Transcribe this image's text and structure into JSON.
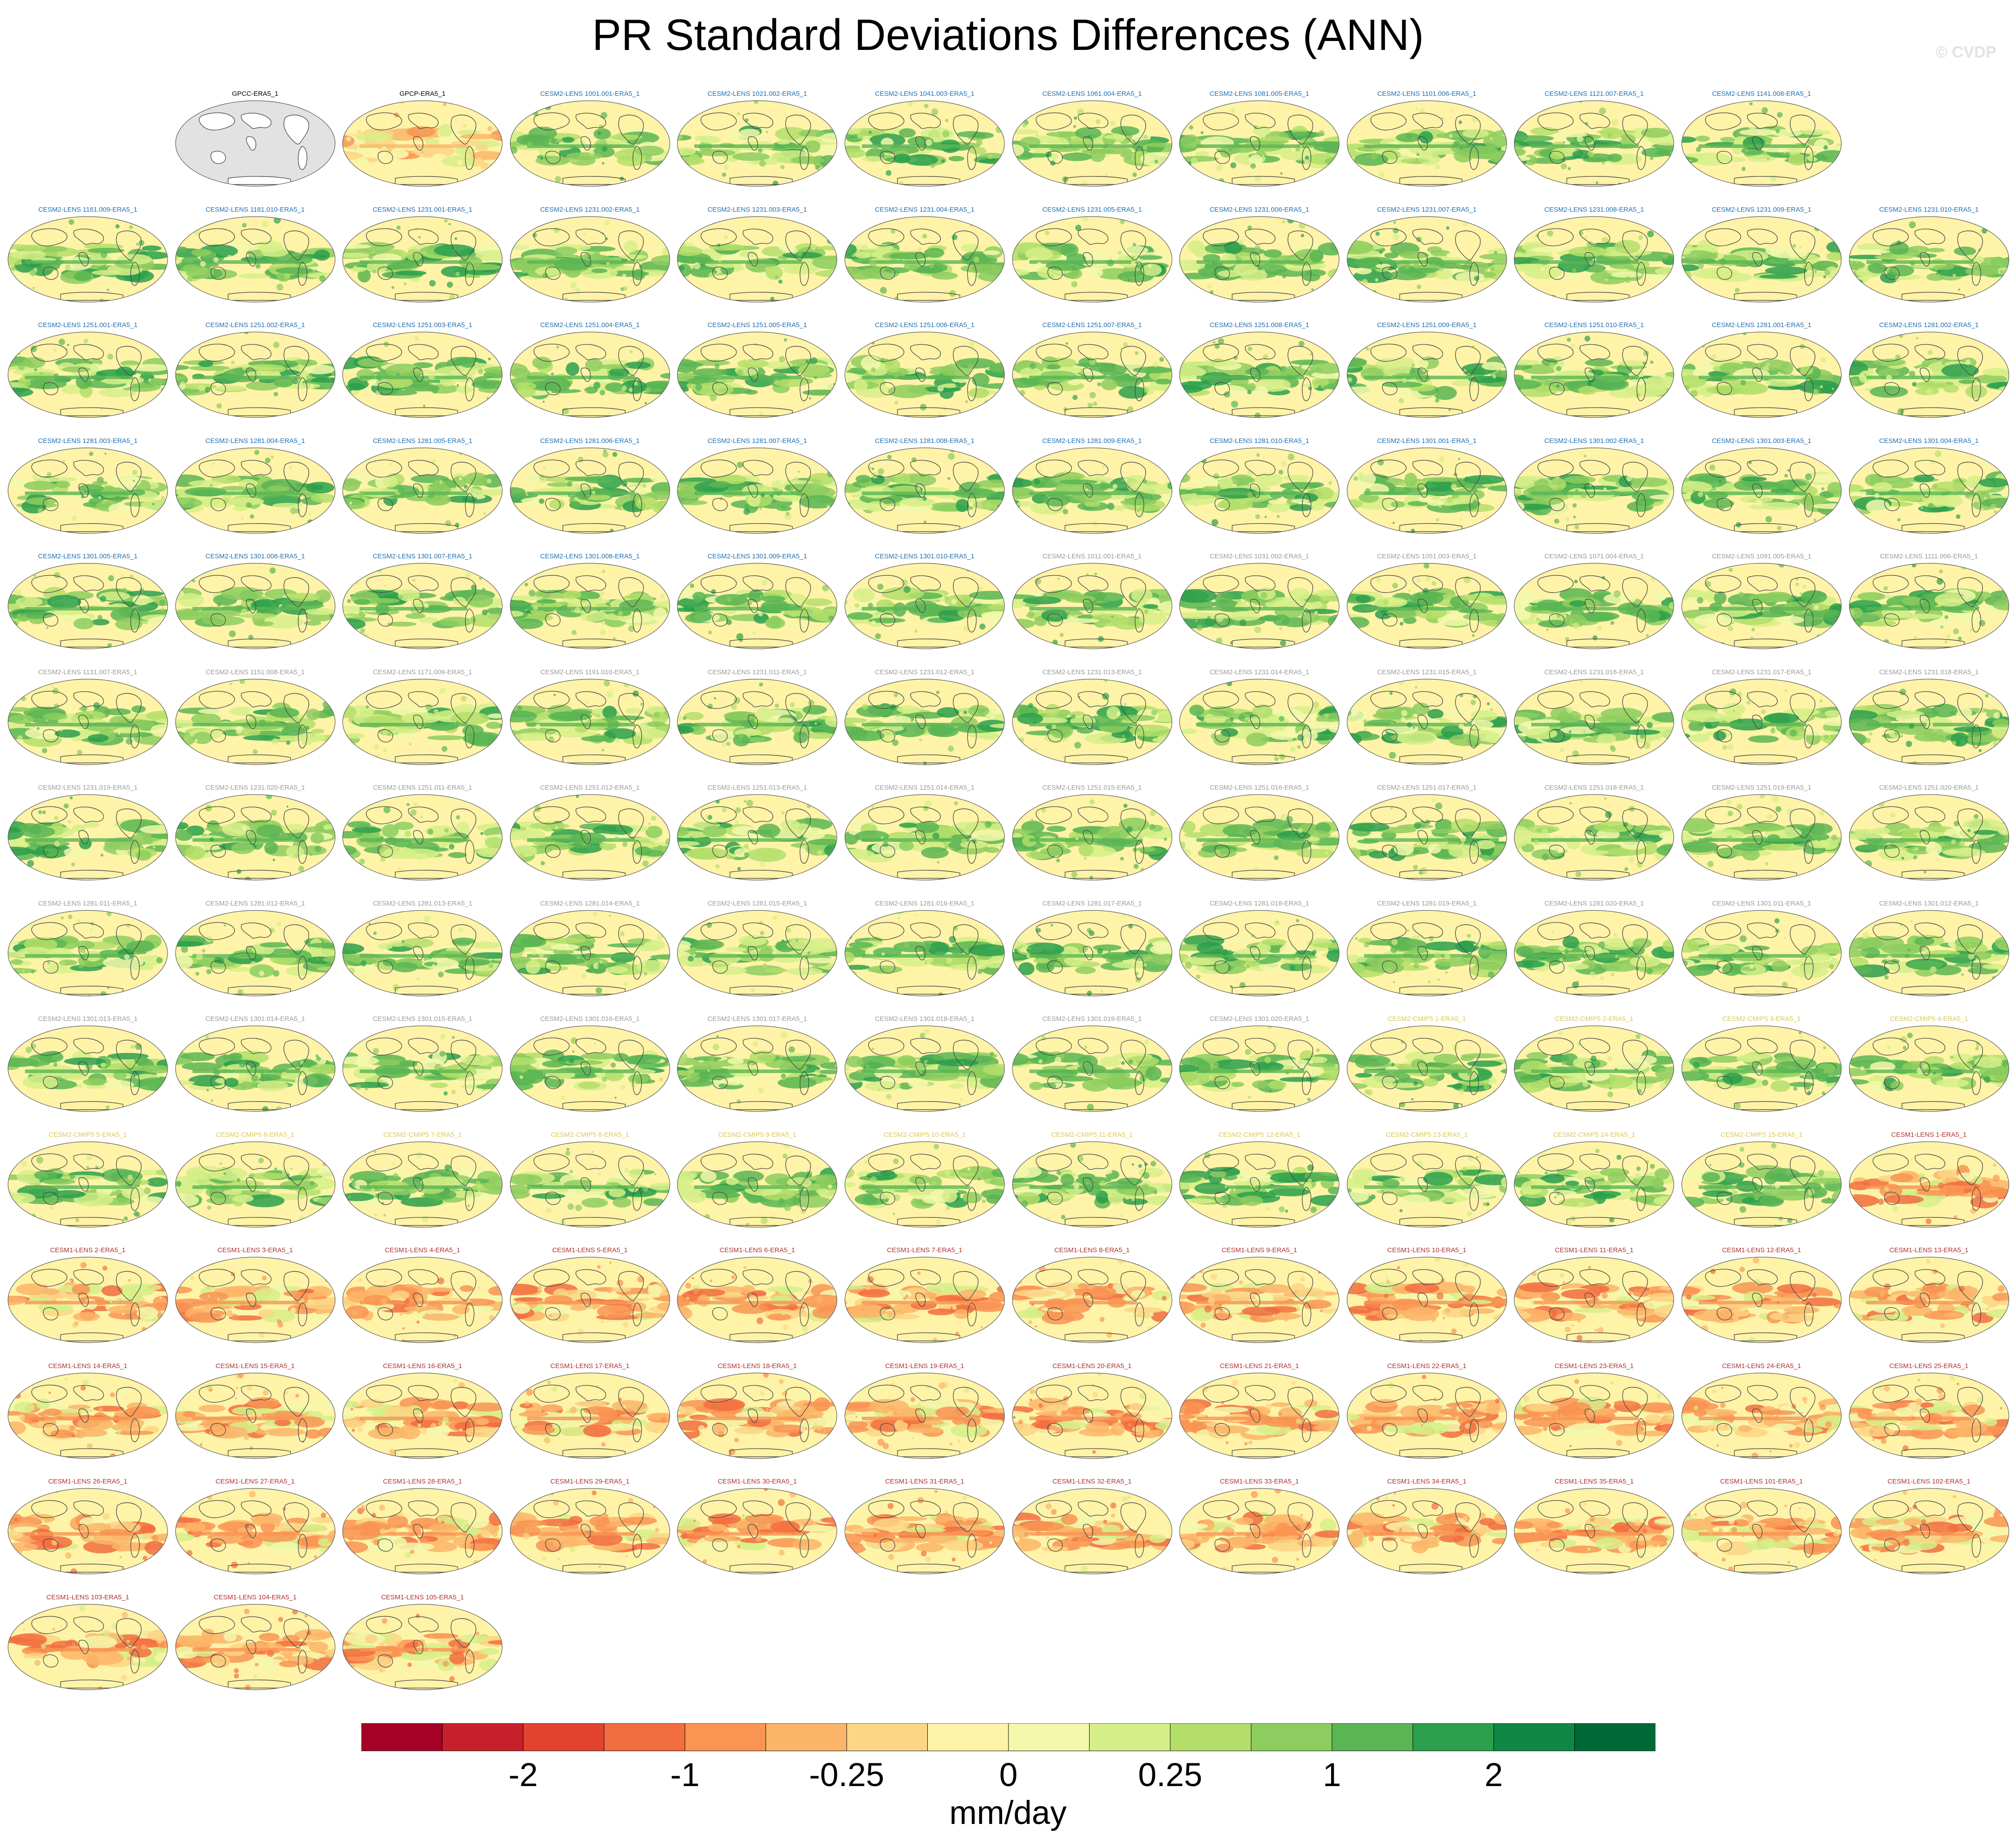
{
  "title": "PR Standard Deviations Differences (ANN)",
  "watermark": "© CVDP",
  "units": "mm/day",
  "colors": {
    "obs_title": "#000000",
    "cesm2_blue": "#1f6fb0",
    "cesm2_gray": "#9a9a9a",
    "cesm2_cmip": "#d9c85a",
    "cesm1": "#b03030",
    "land_obs": "#e2e2e2",
    "coast": "#4a4a4a"
  },
  "colorbar": {
    "colors": [
      "#a50026",
      "#c8202a",
      "#e1432e",
      "#f26d3f",
      "#f99453",
      "#fbb568",
      "#fcd585",
      "#fff3a8",
      "#f3f8ab",
      "#d6ee88",
      "#b3de6a",
      "#8dcc5f",
      "#5ab554",
      "#2b9f4c",
      "#0e8844",
      "#006837"
    ],
    "tick_labels": [
      "-2",
      "-1",
      "-0.25",
      "0",
      "0.25",
      "1",
      "2"
    ]
  },
  "chart_data": {
    "type": "heatmap",
    "title": "PR Standard Deviations Differences (ANN)",
    "colorbar_label": "mm/day",
    "colorbar_ticks": [
      "-2",
      "-1",
      "-0.25",
      "0",
      "0.25",
      "1",
      "2"
    ],
    "panels": [
      {
        "label": "GPCC-ERA5_1",
        "group": "obs"
      },
      {
        "label": "GPCP-ERA5_1",
        "group": "obs"
      },
      {
        "label": "CESM2-LENS 1001.001-ERA5_1",
        "group": "cesm2_blue"
      },
      {
        "label": "CESM2-LENS 1021.002-ERA5_1",
        "group": "cesm2_blue"
      },
      {
        "label": "CESM2-LENS 1041.003-ERA5_1",
        "group": "cesm2_blue"
      },
      {
        "label": "CESM2-LENS 1061.004-ERA5_1",
        "group": "cesm2_blue"
      },
      {
        "label": "CESM2-LENS 1081.005-ERA5_1",
        "group": "cesm2_blue"
      },
      {
        "label": "CESM2-LENS 1101.006-ERA5_1",
        "group": "cesm2_blue"
      },
      {
        "label": "CESM2-LENS 1121.007-ERA5_1",
        "group": "cesm2_blue"
      },
      {
        "label": "CESM2-LENS 1141.008-ERA5_1",
        "group": "cesm2_blue"
      },
      {
        "label": "CESM2-LENS 1161.009-ERA5_1",
        "group": "cesm2_blue"
      },
      {
        "label": "CESM2-LENS 1181.010-ERA5_1",
        "group": "cesm2_blue"
      },
      {
        "label": "CESM2-LENS 1231.001-ERA5_1",
        "group": "cesm2_blue"
      },
      {
        "label": "CESM2-LENS 1231.002-ERA5_1",
        "group": "cesm2_blue"
      },
      {
        "label": "CESM2-LENS 1231.003-ERA5_1",
        "group": "cesm2_blue"
      },
      {
        "label": "CESM2-LENS 1231.004-ERA5_1",
        "group": "cesm2_blue"
      },
      {
        "label": "CESM2-LENS 1231.005-ERA5_1",
        "group": "cesm2_blue"
      },
      {
        "label": "CESM2-LENS 1231.006-ERA5_1",
        "group": "cesm2_blue"
      },
      {
        "label": "CESM2-LENS 1231.007-ERA5_1",
        "group": "cesm2_blue"
      },
      {
        "label": "CESM2-LENS 1231.008-ERA5_1",
        "group": "cesm2_blue"
      },
      {
        "label": "CESM2-LENS 1231.009-ERA5_1",
        "group": "cesm2_blue"
      },
      {
        "label": "CESM2-LENS 1231.010-ERA5_1",
        "group": "cesm2_blue"
      },
      {
        "label": "CESM2-LENS 1251.001-ERA5_1",
        "group": "cesm2_blue"
      },
      {
        "label": "CESM2-LENS 1251.002-ERA5_1",
        "group": "cesm2_blue"
      },
      {
        "label": "CESM2-LENS 1251.003-ERA5_1",
        "group": "cesm2_blue"
      },
      {
        "label": "CESM2-LENS 1251.004-ERA5_1",
        "group": "cesm2_blue"
      },
      {
        "label": "CESM2-LENS 1251.005-ERA5_1",
        "group": "cesm2_blue"
      },
      {
        "label": "CESM2-LENS 1251.006-ERA5_1",
        "group": "cesm2_blue"
      },
      {
        "label": "CESM2-LENS 1251.007-ERA5_1",
        "group": "cesm2_blue"
      },
      {
        "label": "CESM2-LENS 1251.008-ERA5_1",
        "group": "cesm2_blue"
      },
      {
        "label": "CESM2-LENS 1251.009-ERA5_1",
        "group": "cesm2_blue"
      },
      {
        "label": "CESM2-LENS 1251.010-ERA5_1",
        "group": "cesm2_blue"
      },
      {
        "label": "CESM2-LENS 1281.001-ERA5_1",
        "group": "cesm2_blue"
      },
      {
        "label": "CESM2-LENS 1281.002-ERA5_1",
        "group": "cesm2_blue"
      },
      {
        "label": "CESM2-LENS 1281.003-ERA5_1",
        "group": "cesm2_blue"
      },
      {
        "label": "CESM2-LENS 1281.004-ERA5_1",
        "group": "cesm2_blue"
      },
      {
        "label": "CESM2-LENS 1281.005-ERA5_1",
        "group": "cesm2_blue"
      },
      {
        "label": "CESM2-LENS 1281.006-ERA5_1",
        "group": "cesm2_blue"
      },
      {
        "label": "CESM2-LENS 1281.007-ERA5_1",
        "group": "cesm2_blue"
      },
      {
        "label": "CESM2-LENS 1281.008-ERA5_1",
        "group": "cesm2_blue"
      },
      {
        "label": "CESM2-LENS 1281.009-ERA5_1",
        "group": "cesm2_blue"
      },
      {
        "label": "CESM2-LENS 1281.010-ERA5_1",
        "group": "cesm2_blue"
      },
      {
        "label": "CESM2-LENS 1301.001-ERA5_1",
        "group": "cesm2_blue"
      },
      {
        "label": "CESM2-LENS 1301.002-ERA5_1",
        "group": "cesm2_blue"
      },
      {
        "label": "CESM2-LENS 1301.003-ERA5_1",
        "group": "cesm2_blue"
      },
      {
        "label": "CESM2-LENS 1301.004-ERA5_1",
        "group": "cesm2_blue"
      },
      {
        "label": "CESM2-LENS 1301.005-ERA5_1",
        "group": "cesm2_blue"
      },
      {
        "label": "CESM2-LENS 1301.006-ERA5_1",
        "group": "cesm2_blue"
      },
      {
        "label": "CESM2-LENS 1301.007-ERA5_1",
        "group": "cesm2_blue"
      },
      {
        "label": "CESM2-LENS 1301.008-ERA5_1",
        "group": "cesm2_blue"
      },
      {
        "label": "CESM2-LENS 1301.009-ERA5_1",
        "group": "cesm2_blue"
      },
      {
        "label": "CESM2-LENS 1301.010-ERA5_1",
        "group": "cesm2_blue"
      },
      {
        "label": "CESM2-LENS 1011.001-ERA5_1",
        "group": "cesm2_gray"
      },
      {
        "label": "CESM2-LENS 1031.002-ERA5_1",
        "group": "cesm2_gray"
      },
      {
        "label": "CESM2-LENS 1051.003-ERA5_1",
        "group": "cesm2_gray"
      },
      {
        "label": "CESM2-LENS 1071.004-ERA5_1",
        "group": "cesm2_gray"
      },
      {
        "label": "CESM2-LENS 1091.005-ERA5_1",
        "group": "cesm2_gray"
      },
      {
        "label": "CESM2-LENS 1111.006-ERA5_1",
        "group": "cesm2_gray"
      },
      {
        "label": "CESM2-LENS 1131.007-ERA5_1",
        "group": "cesm2_gray"
      },
      {
        "label": "CESM2-LENS 1151.008-ERA5_1",
        "group": "cesm2_gray"
      },
      {
        "label": "CESM2-LENS 1171.009-ERA5_1",
        "group": "cesm2_gray"
      },
      {
        "label": "CESM2-LENS 1191.010-ERA5_1",
        "group": "cesm2_gray"
      },
      {
        "label": "CESM2-LENS 1231.011-ERA5_1",
        "group": "cesm2_gray"
      },
      {
        "label": "CESM2-LENS 1231.012-ERA5_1",
        "group": "cesm2_gray"
      },
      {
        "label": "CESM2-LENS 1231.013-ERA5_1",
        "group": "cesm2_gray"
      },
      {
        "label": "CESM2-LENS 1231.014-ERA5_1",
        "group": "cesm2_gray"
      },
      {
        "label": "CESM2-LENS 1231.015-ERA5_1",
        "group": "cesm2_gray"
      },
      {
        "label": "CESM2-LENS 1231.016-ERA5_1",
        "group": "cesm2_gray"
      },
      {
        "label": "CESM2-LENS 1231.017-ERA5_1",
        "group": "cesm2_gray"
      },
      {
        "label": "CESM2-LENS 1231.018-ERA5_1",
        "group": "cesm2_gray"
      },
      {
        "label": "CESM2-LENS 1231.019-ERA5_1",
        "group": "cesm2_gray"
      },
      {
        "label": "CESM2-LENS 1231.020-ERA5_1",
        "group": "cesm2_gray"
      },
      {
        "label": "CESM2-LENS 1251.011-ERA5_1",
        "group": "cesm2_gray"
      },
      {
        "label": "CESM2-LENS 1251.012-ERA5_1",
        "group": "cesm2_gray"
      },
      {
        "label": "CESM2-LENS 1251.013-ERA5_1",
        "group": "cesm2_gray"
      },
      {
        "label": "CESM2-LENS 1251.014-ERA5_1",
        "group": "cesm2_gray"
      },
      {
        "label": "CESM2-LENS 1251.015-ERA5_1",
        "group": "cesm2_gray"
      },
      {
        "label": "CESM2-LENS 1251.016-ERA5_1",
        "group": "cesm2_gray"
      },
      {
        "label": "CESM2-LENS 1251.017-ERA5_1",
        "group": "cesm2_gray"
      },
      {
        "label": "CESM2-LENS 1251.018-ERA5_1",
        "group": "cesm2_gray"
      },
      {
        "label": "CESM2-LENS 1251.019-ERA5_1",
        "group": "cesm2_gray"
      },
      {
        "label": "CESM2-LENS 1251.020-ERA5_1",
        "group": "cesm2_gray"
      },
      {
        "label": "CESM2-LENS 1281.011-ERA5_1",
        "group": "cesm2_gray"
      },
      {
        "label": "CESM2-LENS 1281.012-ERA5_1",
        "group": "cesm2_gray"
      },
      {
        "label": "CESM2-LENS 1281.013-ERA5_1",
        "group": "cesm2_gray"
      },
      {
        "label": "CESM2-LENS 1281.014-ERA5_1",
        "group": "cesm2_gray"
      },
      {
        "label": "CESM2-LENS 1281.015-ERA5_1",
        "group": "cesm2_gray"
      },
      {
        "label": "CESM2-LENS 1281.016-ERA5_1",
        "group": "cesm2_gray"
      },
      {
        "label": "CESM2-LENS 1281.017-ERA5_1",
        "group": "cesm2_gray"
      },
      {
        "label": "CESM2-LENS 1281.018-ERA5_1",
        "group": "cesm2_gray"
      },
      {
        "label": "CESM2-LENS 1281.019-ERA5_1",
        "group": "cesm2_gray"
      },
      {
        "label": "CESM2-LENS 1281.020-ERA5_1",
        "group": "cesm2_gray"
      },
      {
        "label": "CESM2-LENS 1301.011-ERA5_1",
        "group": "cesm2_gray"
      },
      {
        "label": "CESM2-LENS 1301.012-ERA5_1",
        "group": "cesm2_gray"
      },
      {
        "label": "CESM2-LENS 1301.013-ERA5_1",
        "group": "cesm2_gray"
      },
      {
        "label": "CESM2-LENS 1301.014-ERA5_1",
        "group": "cesm2_gray"
      },
      {
        "label": "CESM2-LENS 1301.015-ERA5_1",
        "group": "cesm2_gray"
      },
      {
        "label": "CESM2-LENS 1301.016-ERA5_1",
        "group": "cesm2_gray"
      },
      {
        "label": "CESM2-LENS 1301.017-ERA5_1",
        "group": "cesm2_gray"
      },
      {
        "label": "CESM2-LENS 1301.018-ERA5_1",
        "group": "cesm2_gray"
      },
      {
        "label": "CESM2-LENS 1301.019-ERA5_1",
        "group": "cesm2_gray"
      },
      {
        "label": "CESM2-LENS 1301.020-ERA5_1",
        "group": "cesm2_gray"
      },
      {
        "label": "CESM2-CMIP5 1-ERA5_1",
        "group": "cesm2_cmip"
      },
      {
        "label": "CESM2-CMIP5 2-ERA5_1",
        "group": "cesm2_cmip"
      },
      {
        "label": "CESM2-CMIP5 3-ERA5_1",
        "group": "cesm2_cmip"
      },
      {
        "label": "CESM2-CMIP5 4-ERA5_1",
        "group": "cesm2_cmip"
      },
      {
        "label": "CESM2-CMIP5 5-ERA5_1",
        "group": "cesm2_cmip"
      },
      {
        "label": "CESM2-CMIP5 6-ERA5_1",
        "group": "cesm2_cmip"
      },
      {
        "label": "CESM2-CMIP5 7-ERA5_1",
        "group": "cesm2_cmip"
      },
      {
        "label": "CESM2-CMIP5 8-ERA5_1",
        "group": "cesm2_cmip"
      },
      {
        "label": "CESM2-CMIP5 9-ERA5_1",
        "group": "cesm2_cmip"
      },
      {
        "label": "CESM2-CMIP5 10-ERA5_1",
        "group": "cesm2_cmip"
      },
      {
        "label": "CESM2-CMIP5 11-ERA5_1",
        "group": "cesm2_cmip"
      },
      {
        "label": "CESM2-CMIP5 12-ERA5_1",
        "group": "cesm2_cmip"
      },
      {
        "label": "CESM2-CMIP5 13-ERA5_1",
        "group": "cesm2_cmip"
      },
      {
        "label": "CESM2-CMIP5 14-ERA5_1",
        "group": "cesm2_cmip"
      },
      {
        "label": "CESM2-CMIP5 15-ERA5_1",
        "group": "cesm2_cmip"
      },
      {
        "label": "CESM1-LENS 1-ERA5_1",
        "group": "cesm1"
      },
      {
        "label": "CESM1-LENS 2-ERA5_1",
        "group": "cesm1"
      },
      {
        "label": "CESM1-LENS 3-ERA5_1",
        "group": "cesm1"
      },
      {
        "label": "CESM1-LENS 4-ERA5_1",
        "group": "cesm1"
      },
      {
        "label": "CESM1-LENS 5-ERA5_1",
        "group": "cesm1"
      },
      {
        "label": "CESM1-LENS 6-ERA5_1",
        "group": "cesm1"
      },
      {
        "label": "CESM1-LENS 7-ERA5_1",
        "group": "cesm1"
      },
      {
        "label": "CESM1-LENS 8-ERA5_1",
        "group": "cesm1"
      },
      {
        "label": "CESM1-LENS 9-ERA5_1",
        "group": "cesm1"
      },
      {
        "label": "CESM1-LENS 10-ERA5_1",
        "group": "cesm1"
      },
      {
        "label": "CESM1-LENS 11-ERA5_1",
        "group": "cesm1"
      },
      {
        "label": "CESM1-LENS 12-ERA5_1",
        "group": "cesm1"
      },
      {
        "label": "CESM1-LENS 13-ERA5_1",
        "group": "cesm1"
      },
      {
        "label": "CESM1-LENS 14-ERA5_1",
        "group": "cesm1"
      },
      {
        "label": "CESM1-LENS 15-ERA5_1",
        "group": "cesm1"
      },
      {
        "label": "CESM1-LENS 16-ERA5_1",
        "group": "cesm1"
      },
      {
        "label": "CESM1-LENS 17-ERA5_1",
        "group": "cesm1"
      },
      {
        "label": "CESM1-LENS 18-ERA5_1",
        "group": "cesm1"
      },
      {
        "label": "CESM1-LENS 19-ERA5_1",
        "group": "cesm1"
      },
      {
        "label": "CESM1-LENS 20-ERA5_1",
        "group": "cesm1"
      },
      {
        "label": "CESM1-LENS 21-ERA5_1",
        "group": "cesm1"
      },
      {
        "label": "CESM1-LENS 22-ERA5_1",
        "group": "cesm1"
      },
      {
        "label": "CESM1-LENS 23-ERA5_1",
        "group": "cesm1"
      },
      {
        "label": "CESM1-LENS 24-ERA5_1",
        "group": "cesm1"
      },
      {
        "label": "CESM1-LENS 25-ERA5_1",
        "group": "cesm1"
      },
      {
        "label": "CESM1-LENS 26-ERA5_1",
        "group": "cesm1"
      },
      {
        "label": "CESM1-LENS 27-ERA5_1",
        "group": "cesm1"
      },
      {
        "label": "CESM1-LENS 28-ERA5_1",
        "group": "cesm1"
      },
      {
        "label": "CESM1-LENS 29-ERA5_1",
        "group": "cesm1"
      },
      {
        "label": "CESM1-LENS 30-ERA5_1",
        "group": "cesm1"
      },
      {
        "label": "CESM1-LENS 31-ERA5_1",
        "group": "cesm1"
      },
      {
        "label": "CESM1-LENS 32-ERA5_1",
        "group": "cesm1"
      },
      {
        "label": "CESM1-LENS 33-ERA5_1",
        "group": "cesm1"
      },
      {
        "label": "CESM1-LENS 34-ERA5_1",
        "group": "cesm1"
      },
      {
        "label": "CESM1-LENS 35-ERA5_1",
        "group": "cesm1"
      },
      {
        "label": "CESM1-LENS 101-ERA5_1",
        "group": "cesm1"
      },
      {
        "label": "CESM1-LENS 102-ERA5_1",
        "group": "cesm1"
      },
      {
        "label": "CESM1-LENS 103-ERA5_1",
        "group": "cesm1"
      },
      {
        "label": "CESM1-LENS 104-ERA5_1",
        "group": "cesm1"
      },
      {
        "label": "CESM1-LENS 105-ERA5_1",
        "group": "cesm1"
      }
    ]
  }
}
